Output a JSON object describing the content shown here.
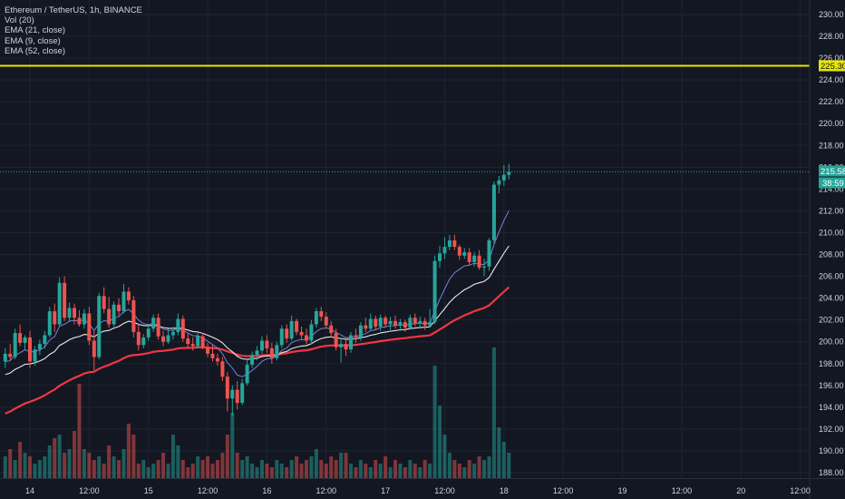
{
  "legend": {
    "symbol": "Ethereum / TetherUS, 1h, BINANCE",
    "indicators": [
      "Vol (20)",
      "EMA (21, close)",
      "EMA (9, close)",
      "EMA (52, close)"
    ]
  },
  "price_tags": {
    "resistance": "225.30",
    "last_price": "215.58",
    "countdown": "38:59"
  },
  "colors": {
    "background": "#131722",
    "grid": "#1f2433",
    "up": "#26a69a",
    "down": "#ef5350",
    "resistance_line": "#e6e600",
    "ema9": "#7b7fd6",
    "ema21": "#e8e8e8",
    "ema52": "#f23645",
    "last_price_line": "#26a69a"
  },
  "chart_data": {
    "type": "candlestick",
    "y_axis_ticks": [
      "188.00",
      "190.00",
      "192.00",
      "194.00",
      "196.00",
      "198.00",
      "200.00",
      "202.00",
      "204.00",
      "206.00",
      "208.00",
      "210.00",
      "212.00",
      "214.00",
      "216.00",
      "218.00",
      "220.00",
      "222.00",
      "224.00",
      "226.00",
      "228.00",
      "230.00"
    ],
    "ylim": [
      187.0,
      231.5
    ],
    "x_axis_ticks": [
      "14",
      "12:00",
      "15",
      "12:00",
      "16",
      "12:00",
      "17",
      "12:00",
      "18",
      "12:00",
      "19",
      "12:00",
      "20",
      "12:00"
    ],
    "x_tick_hours": [
      0,
      12,
      24,
      36,
      48,
      60,
      72,
      84,
      96,
      108,
      120,
      132,
      144,
      156
    ],
    "first_candle_hour": -5,
    "resistance_level": 225.3,
    "last_price": 215.58,
    "candles_ohlc": [
      [
        198.2,
        199.4,
        197.6,
        198.9
      ],
      [
        198.9,
        199.8,
        198.3,
        198.6
      ],
      [
        198.6,
        201.2,
        198.4,
        200.8
      ],
      [
        200.8,
        201.6,
        199.6,
        199.9
      ],
      [
        199.9,
        200.6,
        199.2,
        200.4
      ],
      [
        200.4,
        201.0,
        197.6,
        198.2
      ],
      [
        198.2,
        199.6,
        197.8,
        199.3
      ],
      [
        199.3,
        200.2,
        198.8,
        199.8
      ],
      [
        199.8,
        201.0,
        199.4,
        200.6
      ],
      [
        200.6,
        203.2,
        200.4,
        202.8
      ],
      [
        202.8,
        203.5,
        200.9,
        201.6
      ],
      [
        201.6,
        205.9,
        201.4,
        205.4
      ],
      [
        205.4,
        206.0,
        201.9,
        202.2
      ],
      [
        202.2,
        203.6,
        201.8,
        203.1
      ],
      [
        203.1,
        203.5,
        201.6,
        202.2
      ],
      [
        202.2,
        202.9,
        201.4,
        201.6
      ],
      [
        201.6,
        203.0,
        201.2,
        202.6
      ],
      [
        202.6,
        203.2,
        199.7,
        200.1
      ],
      [
        200.1,
        201.0,
        197.4,
        198.6
      ],
      [
        198.6,
        204.5,
        198.4,
        204.2
      ],
      [
        204.2,
        205.0,
        202.6,
        203.0
      ],
      [
        203.0,
        204.1,
        201.3,
        201.6
      ],
      [
        201.6,
        203.7,
        201.4,
        203.4
      ],
      [
        203.4,
        204.0,
        202.4,
        202.8
      ],
      [
        202.8,
        205.3,
        202.6,
        204.6
      ],
      [
        204.6,
        205.0,
        203.4,
        203.8
      ],
      [
        203.8,
        204.2,
        200.4,
        200.9
      ],
      [
        200.9,
        201.6,
        199.2,
        199.7
      ],
      [
        199.7,
        200.7,
        199.4,
        200.4
      ],
      [
        200.4,
        201.6,
        200.1,
        201.2
      ],
      [
        201.2,
        202.5,
        200.9,
        202.2
      ],
      [
        202.2,
        202.6,
        200.2,
        200.5
      ],
      [
        200.5,
        201.0,
        199.6,
        200.0
      ],
      [
        200.0,
        201.2,
        199.8,
        200.6
      ],
      [
        200.6,
        201.4,
        200.2,
        200.9
      ],
      [
        200.9,
        202.6,
        200.6,
        202.1
      ],
      [
        202.1,
        202.4,
        200.0,
        200.3
      ],
      [
        200.3,
        200.8,
        199.4,
        199.8
      ],
      [
        199.8,
        200.4,
        199.2,
        199.6
      ],
      [
        199.6,
        200.8,
        199.4,
        200.5
      ],
      [
        200.5,
        200.8,
        199.3,
        199.5
      ],
      [
        199.5,
        199.9,
        198.6,
        198.9
      ],
      [
        198.9,
        199.7,
        198.2,
        198.5
      ],
      [
        198.5,
        198.9,
        197.8,
        198.2
      ],
      [
        198.2,
        198.6,
        196.4,
        196.8
      ],
      [
        196.8,
        197.2,
        193.6,
        194.8
      ],
      [
        194.8,
        196.0,
        193.2,
        195.6
      ],
      [
        195.6,
        196.4,
        193.8,
        194.4
      ],
      [
        194.4,
        196.6,
        194.2,
        196.2
      ],
      [
        196.2,
        198.3,
        196.0,
        197.9
      ],
      [
        197.9,
        199.1,
        197.6,
        198.8
      ],
      [
        198.8,
        199.6,
        198.3,
        199.2
      ],
      [
        199.2,
        200.5,
        198.9,
        200.1
      ],
      [
        200.1,
        200.6,
        199.0,
        199.4
      ],
      [
        199.4,
        199.9,
        198.0,
        198.5
      ],
      [
        198.5,
        200.0,
        198.3,
        199.7
      ],
      [
        199.7,
        201.5,
        199.4,
        201.2
      ],
      [
        201.2,
        201.6,
        199.9,
        200.3
      ],
      [
        200.3,
        202.4,
        200.1,
        201.9
      ],
      [
        201.9,
        202.1,
        200.6,
        200.9
      ],
      [
        200.9,
        201.4,
        200.2,
        200.6
      ],
      [
        200.6,
        201.2,
        199.8,
        200.1
      ],
      [
        200.1,
        202.0,
        199.8,
        201.6
      ],
      [
        201.6,
        203.1,
        201.3,
        202.8
      ],
      [
        202.8,
        203.2,
        201.9,
        202.3
      ],
      [
        202.3,
        202.7,
        201.2,
        201.5
      ],
      [
        201.5,
        201.9,
        200.4,
        200.8
      ],
      [
        200.8,
        201.2,
        199.2,
        199.5
      ],
      [
        199.5,
        200.4,
        198.1,
        199.8
      ],
      [
        199.8,
        200.4,
        198.7,
        199.3
      ],
      [
        199.3,
        200.9,
        199.0,
        200.6
      ],
      [
        200.6,
        201.2,
        199.9,
        200.4
      ],
      [
        200.4,
        201.8,
        200.1,
        201.5
      ],
      [
        201.5,
        202.2,
        200.9,
        201.2
      ],
      [
        201.2,
        202.6,
        201.0,
        202.1
      ],
      [
        202.1,
        202.4,
        201.1,
        201.4
      ],
      [
        201.4,
        202.5,
        201.0,
        202.2
      ],
      [
        202.2,
        202.4,
        201.3,
        201.6
      ],
      [
        201.6,
        202.3,
        201.1,
        201.9
      ],
      [
        201.9,
        202.4,
        201.2,
        201.5
      ],
      [
        201.5,
        202.1,
        201.0,
        201.8
      ],
      [
        201.8,
        202.0,
        200.9,
        201.3
      ],
      [
        201.3,
        202.5,
        201.1,
        202.2
      ],
      [
        202.2,
        202.6,
        201.4,
        201.7
      ],
      [
        201.7,
        202.3,
        201.2,
        201.9
      ],
      [
        201.9,
        202.2,
        201.1,
        201.5
      ],
      [
        201.5,
        203.0,
        201.3,
        201.8
      ],
      [
        201.8,
        207.9,
        201.6,
        207.4
      ],
      [
        207.4,
        208.8,
        206.8,
        208.1
      ],
      [
        208.1,
        209.6,
        207.6,
        208.7
      ],
      [
        208.7,
        209.8,
        208.4,
        209.3
      ],
      [
        209.3,
        209.8,
        208.4,
        208.7
      ],
      [
        208.7,
        208.9,
        207.5,
        207.9
      ],
      [
        207.9,
        208.6,
        207.6,
        208.2
      ],
      [
        208.2,
        208.6,
        207.0,
        207.3
      ],
      [
        207.3,
        208.2,
        206.9,
        207.9
      ],
      [
        207.9,
        208.4,
        206.6,
        206.8
      ],
      [
        206.8,
        207.6,
        206.0,
        206.9
      ],
      [
        206.9,
        209.5,
        206.5,
        209.3
      ],
      [
        209.3,
        214.7,
        209.0,
        214.4
      ],
      [
        214.4,
        215.2,
        213.6,
        214.8
      ],
      [
        214.8,
        216.2,
        214.3,
        215.3
      ],
      [
        215.3,
        216.3,
        214.9,
        215.58
      ]
    ],
    "volume": [
      3.0,
      4.0,
      2.5,
      5.0,
      3.5,
      3.0,
      2.0,
      2.5,
      3.0,
      4.5,
      5.5,
      6.0,
      3.5,
      4.0,
      6.5,
      13.0,
      4.0,
      3.5,
      2.5,
      3.0,
      2.0,
      4.5,
      3.0,
      2.5,
      4.0,
      7.5,
      6.0,
      2.0,
      2.5,
      1.5,
      2.0,
      2.5,
      3.5,
      2.0,
      6.0,
      4.5,
      2.5,
      1.5,
      2.0,
      3.0,
      2.5,
      3.0,
      2.0,
      2.5,
      3.5,
      6.0,
      9.0,
      3.5,
      2.5,
      3.0,
      2.0,
      1.5,
      2.5,
      2.0,
      1.5,
      2.5,
      2.0,
      1.5,
      2.5,
      3.0,
      2.0,
      2.5,
      3.0,
      4.0,
      2.5,
      2.0,
      3.0,
      2.5,
      3.5,
      3.5,
      2.0,
      1.5,
      2.5,
      2.0,
      1.5,
      2.5,
      2.0,
      3.0,
      1.5,
      2.5,
      2.0,
      1.5,
      2.5,
      2.0,
      1.5,
      2.5,
      2.0,
      15.5,
      10.0,
      6.0,
      3.5,
      2.5,
      2.0,
      1.5,
      2.5,
      2.0,
      3.0,
      2.5,
      3.0,
      18.0,
      7.0,
      5.0,
      3.5
    ],
    "volume_scale_max": 20
  }
}
